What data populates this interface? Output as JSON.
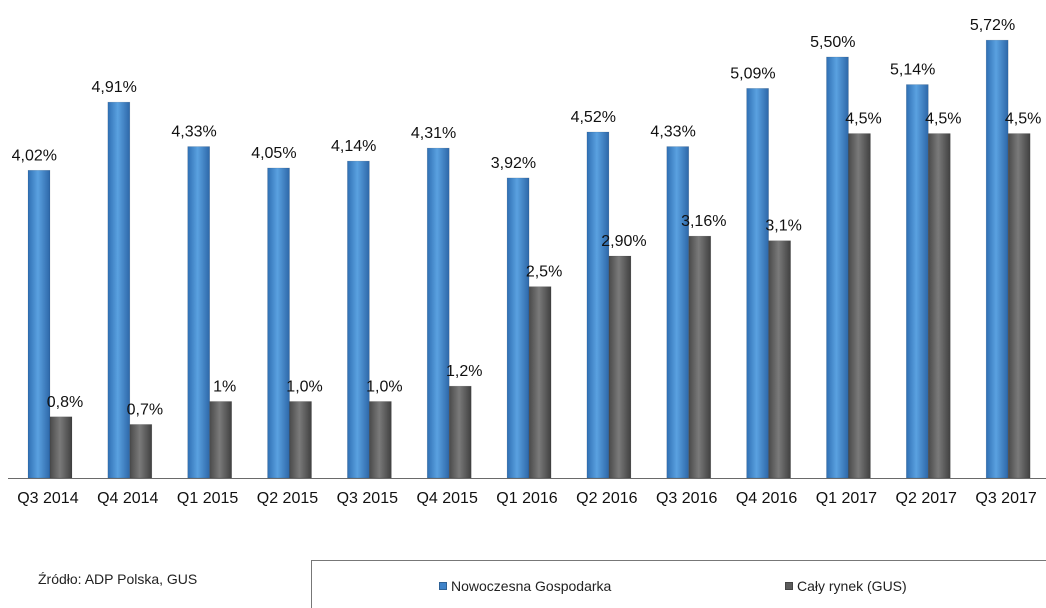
{
  "chart_data": {
    "type": "bar",
    "categories": [
      "Q3 2014",
      "Q4 2014",
      "Q1 2015",
      "Q2 2015",
      "Q3 2015",
      "Q4 2015",
      "Q1 2016",
      "Q2 2016",
      "Q3 2016",
      "Q4 2016",
      "Q1 2017",
      "Q2 2017",
      "Q3 2017"
    ],
    "series": [
      {
        "name": "Nowoczesna Gospodarka",
        "values": [
          4.02,
          4.91,
          4.33,
          4.05,
          4.14,
          4.31,
          3.92,
          4.52,
          4.33,
          5.09,
          5.5,
          5.14,
          5.72
        ],
        "labels": [
          "4,02%",
          "4,91%",
          "4,33%",
          "4,05%",
          "4,14%",
          "4,31%",
          "3,92%",
          "4,52%",
          "4,33%",
          "5,09%",
          "5,50%",
          "5,14%",
          "5,72%"
        ],
        "color": "#3f83c9"
      },
      {
        "name": "Cały rynek (GUS)",
        "values": [
          0.8,
          0.7,
          1.0,
          1.0,
          1.0,
          1.2,
          2.5,
          2.9,
          3.16,
          3.1,
          4.5,
          4.5,
          4.5
        ],
        "labels": [
          "0,8%",
          "0,7%",
          "1%",
          "1,0%",
          "1,0%",
          "1,2%",
          "2,5%",
          "2,90%",
          "3,16%",
          "3,1%",
          "4,5%",
          "4,5%",
          "4,5%"
        ],
        "color": "#5c5c5c"
      }
    ],
    "ylim": [
      0,
      5.8
    ],
    "grid": false,
    "legend_position": "bottom-right",
    "source": "Źródło: ADP Polska, GUS"
  }
}
